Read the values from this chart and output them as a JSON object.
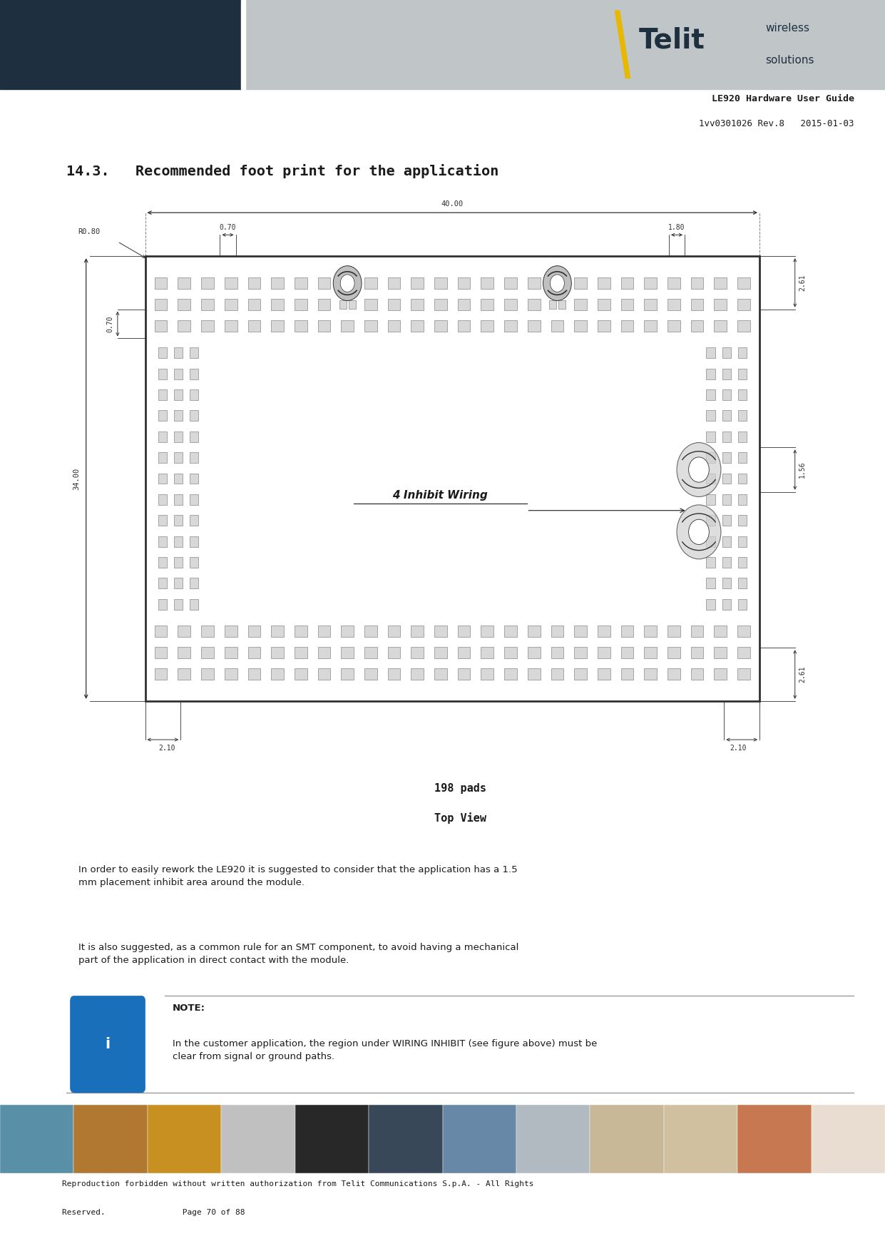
{
  "page_title": "LE920 Hardware User Guide",
  "page_subtitle": "1vv0301026 Rev.8   2015-01-03",
  "section_title": "14.3.   Recommended foot print for the application",
  "caption1": "198 pads",
  "caption2": "Top View",
  "body_text1": "In order to easily rework the LE920 it is suggested to consider that the application has a 1.5\nmm placement inhibit area around the module.",
  "body_text2": "It is also suggested, as a common rule for an SMT component, to avoid having a mechanical\npart of the application in direct contact with the module.",
  "note_label": "NOTE:",
  "note_text": "In the customer application, the region under WIRING INHIBIT (see figure above) must be\nclear from signal or ground paths.",
  "footer_text1": "Reproduction forbidden without written authorization from Telit Communications S.p.A. - All Rights",
  "footer_text2": "Reserved.                Page 70 of 88",
  "bg_color": "#ffffff",
  "header_dark_color": "#1e3040",
  "header_light_color": "#c0c5c8",
  "telit_color": "#1e3040",
  "telit_accent": "#e8b800",
  "pad_color": "#d8d8d8",
  "pad_edge": "#888888",
  "board_bg": "#f0f0f0",
  "line_color": "#303030",
  "dim_color": "#303030",
  "inhibit_text": "4 Inhibit Wiring",
  "note_icon_color": "#1a6fba",
  "strip_colors": [
    "#5a8fa8",
    "#b07830",
    "#c89020",
    "#c0c0c0",
    "#282828",
    "#384858",
    "#6888a8",
    "#b0bac0",
    "#c8b898",
    "#d0c0a0",
    "#c87850",
    "#e8ddd0"
  ]
}
